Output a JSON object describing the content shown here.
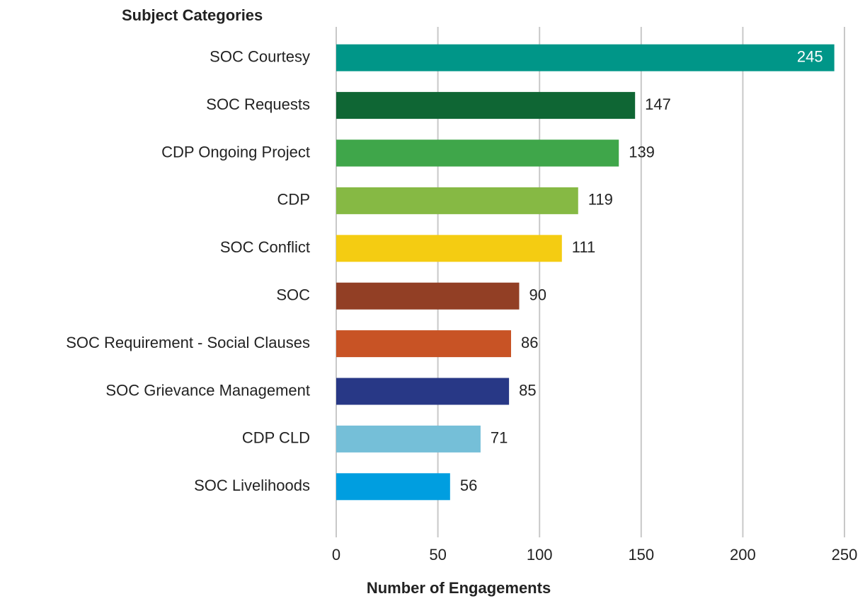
{
  "chart_data": {
    "type": "barh",
    "y_label": "Subject Categories",
    "x_label": "Number of Engagements",
    "categories": [
      "SOC Courtesy",
      "SOC Requests",
      "CDP Ongoing Project",
      "CDP",
      "SOC Conflict",
      "SOC",
      "SOC Requirement - Social Clauses",
      "SOC Grievance Management",
      "CDP CLD",
      "SOC Livelihoods"
    ],
    "values": [
      245,
      147,
      139,
      119,
      111,
      90,
      86,
      85,
      71,
      56
    ],
    "colors": [
      "#009688",
      "#0f6634",
      "#3fa64a",
      "#86b944",
      "#f4cc12",
      "#923f25",
      "#c85325",
      "#283886",
      "#75bfd8",
      "#009ee0"
    ],
    "xlim": [
      0,
      250
    ],
    "xticks": [
      0,
      50,
      100,
      150,
      200,
      250
    ],
    "grid": true
  }
}
